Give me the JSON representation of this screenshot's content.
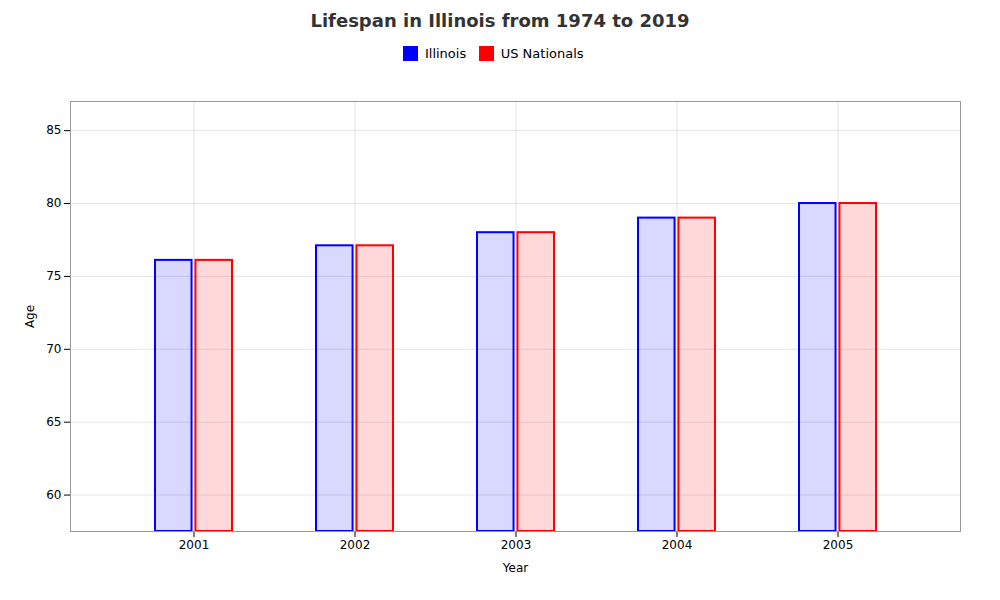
{
  "chart_data": {
    "type": "bar",
    "title": "Lifespan in Illinois from 1974 to 2019",
    "x_label": "Year",
    "y_label": "Age",
    "categories": [
      "2001",
      "2002",
      "2003",
      "2004",
      "2005"
    ],
    "series": [
      {
        "name": "Illinois",
        "color": "#0000ff",
        "values": [
          76.1,
          77.1,
          78.0,
          79.0,
          80.0
        ]
      },
      {
        "name": "US Nationals",
        "color": "#ff0000",
        "values": [
          76.1,
          77.1,
          78.0,
          79.0,
          80.0
        ]
      }
    ],
    "ylim": [
      57.5,
      87
    ],
    "yticks": [
      60,
      65,
      70,
      75,
      80,
      85
    ],
    "grid": true,
    "legend": "top"
  }
}
